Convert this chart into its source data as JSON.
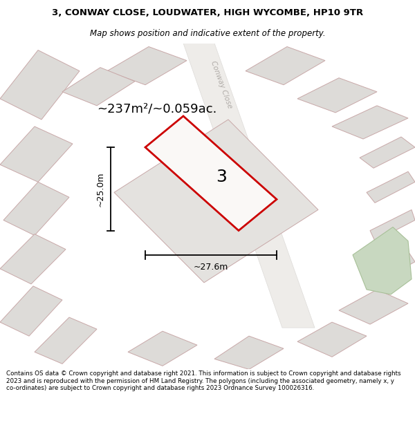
{
  "title_line1": "3, CONWAY CLOSE, LOUDWATER, HIGH WYCOMBE, HP10 9TR",
  "title_line2": "Map shows position and indicative extent of the property.",
  "area_text": "~237m²/~0.059ac.",
  "dim_width": "~27.6m",
  "dim_height": "~25.0m",
  "plot_number": "3",
  "footer_text": "Contains OS data © Crown copyright and database right 2021. This information is subject to Crown copyright and database rights 2023 and is reproduced with the permission of HM Land Registry. The polygons (including the associated geometry, namely x, y co-ordinates) are subject to Crown copyright and database rights 2023 Ordnance Survey 100026316.",
  "map_bg": "#f2f0ee",
  "plot_outline": "#cc0000",
  "building_fill": "#dddbd8",
  "building_outline": "#c8a8a8",
  "green_fill": "#c8d8c0",
  "green_outline": "#a8c098",
  "street_label": "Conway Close",
  "title_fontsize": 9.5,
  "subtitle_fontsize": 8.5,
  "area_fontsize": 13,
  "number_fontsize": 18,
  "dim_fontsize": 9,
  "footer_fontsize": 6.3
}
